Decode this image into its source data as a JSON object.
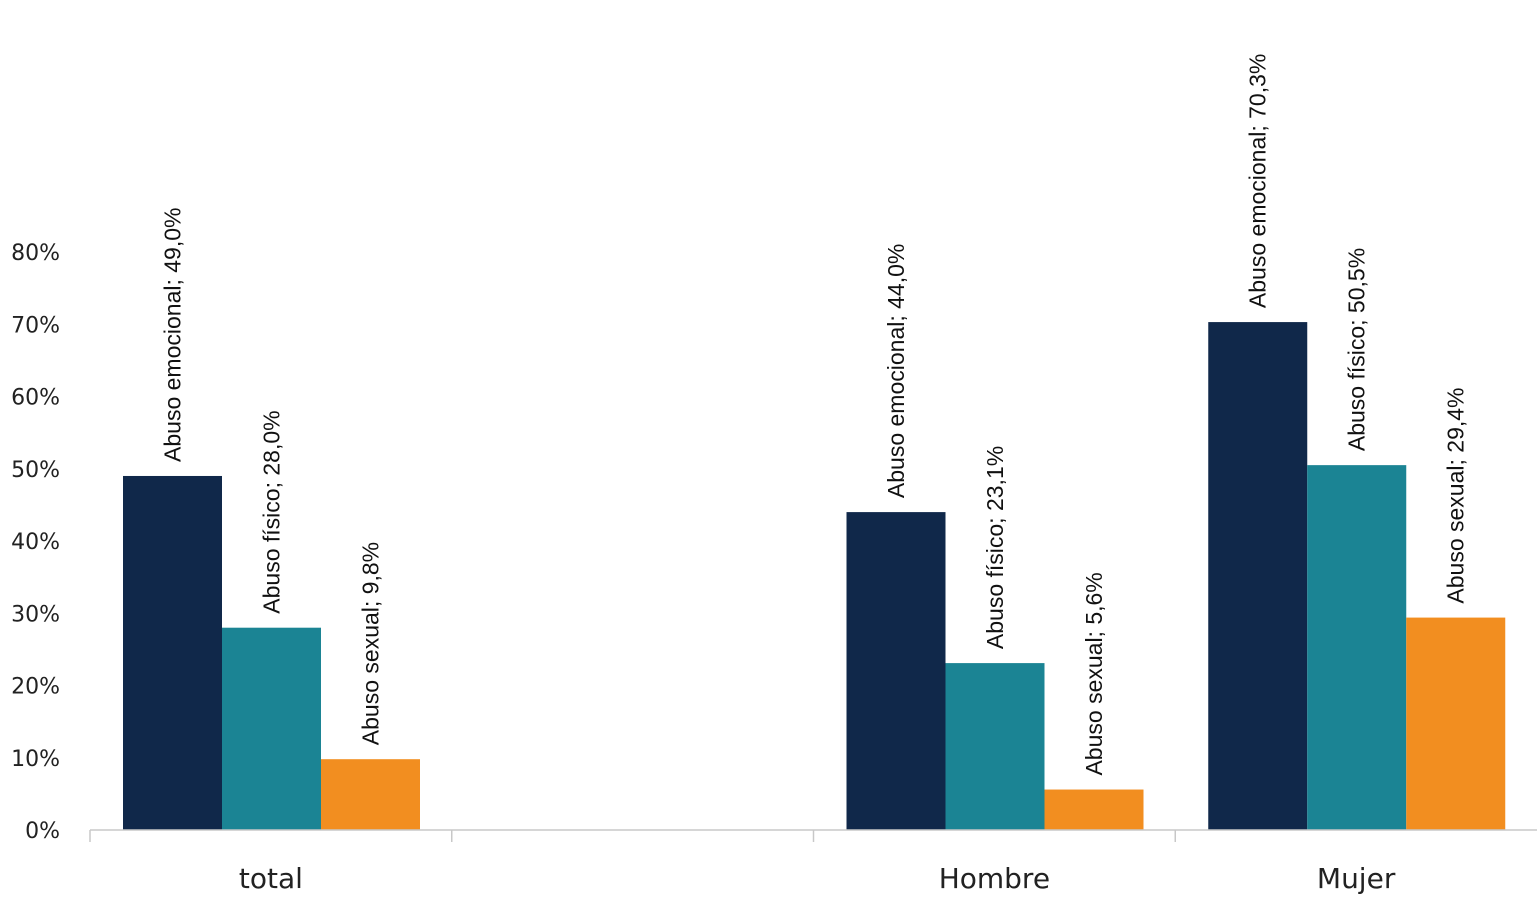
{
  "chart_data": {
    "type": "bar",
    "categories": [
      "total",
      "",
      "Hombre",
      "Mujer"
    ],
    "series": [
      {
        "key": "emocional",
        "color": "#10284a",
        "values": [
          49.0,
          null,
          44.0,
          70.3
        ]
      },
      {
        "key": "fisico",
        "color": "#1b8494",
        "values": [
          28.0,
          null,
          23.1,
          50.5
        ]
      },
      {
        "key": "sexual",
        "color": "#f28e20",
        "values": [
          9.8,
          null,
          5.6,
          29.4
        ]
      }
    ],
    "data_labels": [
      [
        "Abuso emocional; 49,0%",
        "Abuso físico; 28,0%",
        "Abuso sexual; 9,8%"
      ],
      [
        null,
        null,
        null
      ],
      [
        "Abuso emocional; 44,0%",
        "Abuso físico; 23,1%",
        "Abuso sexual; 5,6%"
      ],
      [
        "Abuso emocional; 70,3%",
        "Abuso físico; 50,5%",
        "Abuso sexual; 29,4%"
      ]
    ],
    "y_ticks": [
      "0%",
      "10%",
      "20%",
      "30%",
      "40%",
      "50%",
      "60%",
      "70%",
      "80%"
    ],
    "ylim": [
      0,
      80
    ],
    "title": "",
    "xlabel": "",
    "ylabel": "",
    "grid": false,
    "legend": "none"
  }
}
